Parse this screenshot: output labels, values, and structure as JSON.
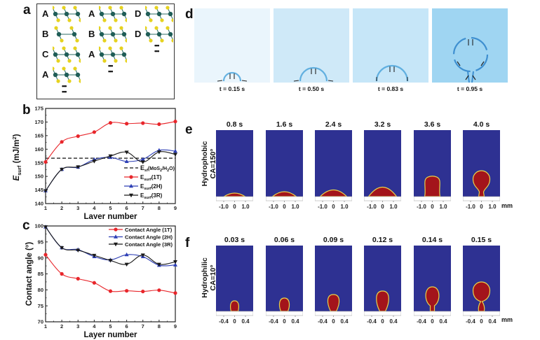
{
  "panel_labels": {
    "a": "a",
    "b": "b",
    "c": "c",
    "d": "d",
    "e": "e",
    "f": "f"
  },
  "panel_a": {
    "columns": [
      {
        "letters": [
          "A",
          "B",
          "C",
          "A"
        ],
        "layer_counts": [
          3,
          2,
          3,
          3
        ]
      },
      {
        "letters": [
          "A",
          "B",
          "A"
        ],
        "layer_counts": [
          3,
          3,
          3
        ]
      },
      {
        "letters": [
          "D",
          "D"
        ],
        "layer_counts": [
          3,
          3
        ]
      }
    ],
    "ellipsis": "•••",
    "colors": {
      "metal": "#1f5d57",
      "sulfur": "#e6d21f"
    }
  },
  "panel_d": {
    "captions": [
      "t = 0.15 s",
      "t = 0.50 s",
      "t = 0.83 s",
      "t = 0.95 s"
    ],
    "background_colors": [
      "#eaf5fc",
      "#cfe9f8",
      "#c6e6f8",
      "#9fd5f2"
    ]
  },
  "panel_e": {
    "row_label_line1": "Hydrophobic",
    "row_label_line2": "CA=150°",
    "times": [
      "0.8 s",
      "1.6 s",
      "2.4 s",
      "3.2 s",
      "3.6 s",
      "4.0 s"
    ],
    "ticks": [
      "-1.0",
      "0",
      "1.0"
    ],
    "unit": "mm"
  },
  "panel_f": {
    "row_label_line1": "Hydrophilic",
    "row_label_line2": "CA=10°",
    "times": [
      "0.03 s",
      "0.06 s",
      "0.09 s",
      "0.12 s",
      "0.14 s",
      "0.15 s"
    ],
    "ticks": [
      "-0.4",
      "0",
      "0.4"
    ],
    "unit": "mm"
  },
  "chart_data": [
    {
      "id": "b",
      "type": "line",
      "title": "",
      "xlabel": "Layer number",
      "ylabel": "E_surf (mJ/m²)",
      "ylabel_main": "E",
      "ylabel_sub": "surf",
      "ylabel_unit": " (mJ/m",
      "ylabel_sup": "2",
      "ylabel_end": ")",
      "xlim": [
        1,
        9
      ],
      "ylim": [
        140,
        175
      ],
      "xticks": [
        1,
        2,
        3,
        4,
        5,
        6,
        7,
        8,
        9
      ],
      "yticks": [
        140,
        145,
        150,
        155,
        160,
        165,
        170,
        175
      ],
      "x": [
        1,
        2,
        3,
        4,
        5,
        6,
        7,
        8,
        9
      ],
      "reference_line": {
        "name": "E_sf(MoS2/H2O)",
        "value": 156.7,
        "color": "#111111"
      },
      "series": [
        {
          "name": "E_surf(1T)",
          "label_main": "E",
          "label_sub": "surf",
          "label_end": "(1T)",
          "color": "#e8262b",
          "marker": "circle",
          "values": [
            155.3,
            162.7,
            164.8,
            166.3,
            169.7,
            169.4,
            169.6,
            169.2,
            170.2
          ]
        },
        {
          "name": "E_surf(2H)",
          "label_main": "E",
          "label_sub": "surf",
          "label_end": "(2H)",
          "color": "#2d3fb5",
          "marker": "triangle-up",
          "values": [
            144.7,
            152.6,
            153.4,
            156.2,
            157.0,
            155.5,
            156.3,
            159.6,
            159.3
          ]
        },
        {
          "name": "E_surf(3R)",
          "label_main": "E",
          "label_sub": "surf",
          "label_end": "(3R)",
          "color": "#1a1a1a",
          "marker": "triangle-down",
          "values": [
            144.7,
            152.6,
            153.5,
            155.6,
            157.5,
            158.9,
            155.3,
            159.0,
            158.1
          ]
        }
      ],
      "legend_ref_main": "E",
      "legend_ref_sub": "sf",
      "legend_ref_end": "(MoS",
      "legend_ref_sub2": "2",
      "legend_ref_end2": "/H",
      "legend_ref_sub3": "2",
      "legend_ref_end3": "O)",
      "legend": "bottom-right",
      "grid": false
    },
    {
      "id": "c",
      "type": "line",
      "title": "",
      "xlabel": "Layer number",
      "ylabel": "Contact angle (°)",
      "xlim": [
        1,
        9
      ],
      "ylim": [
        70,
        100
      ],
      "xticks": [
        1,
        2,
        3,
        4,
        5,
        6,
        7,
        8,
        9
      ],
      "yticks": [
        70,
        75,
        80,
        85,
        90,
        95,
        100
      ],
      "x": [
        1,
        2,
        3,
        4,
        5,
        6,
        7,
        8,
        9
      ],
      "series": [
        {
          "name": "Contact Angle (1T)",
          "color": "#e8262b",
          "marker": "circle",
          "values": [
            91.0,
            85.0,
            83.5,
            82.2,
            79.6,
            79.7,
            79.5,
            79.9,
            79.0
          ]
        },
        {
          "name": "Contact Angle (2H)",
          "color": "#2d3fb5",
          "marker": "triangle-up",
          "values": [
            99.7,
            93.2,
            92.6,
            90.4,
            89.4,
            91.0,
            90.4,
            87.7,
            87.8
          ]
        },
        {
          "name": "Contact Angle (3R)",
          "color": "#1a1a1a",
          "marker": "triangle-down",
          "values": [
            99.7,
            93.2,
            92.4,
            90.8,
            89.2,
            88.0,
            90.9,
            88.0,
            88.8
          ]
        }
      ],
      "legend": "top-right",
      "grid": false
    }
  ]
}
